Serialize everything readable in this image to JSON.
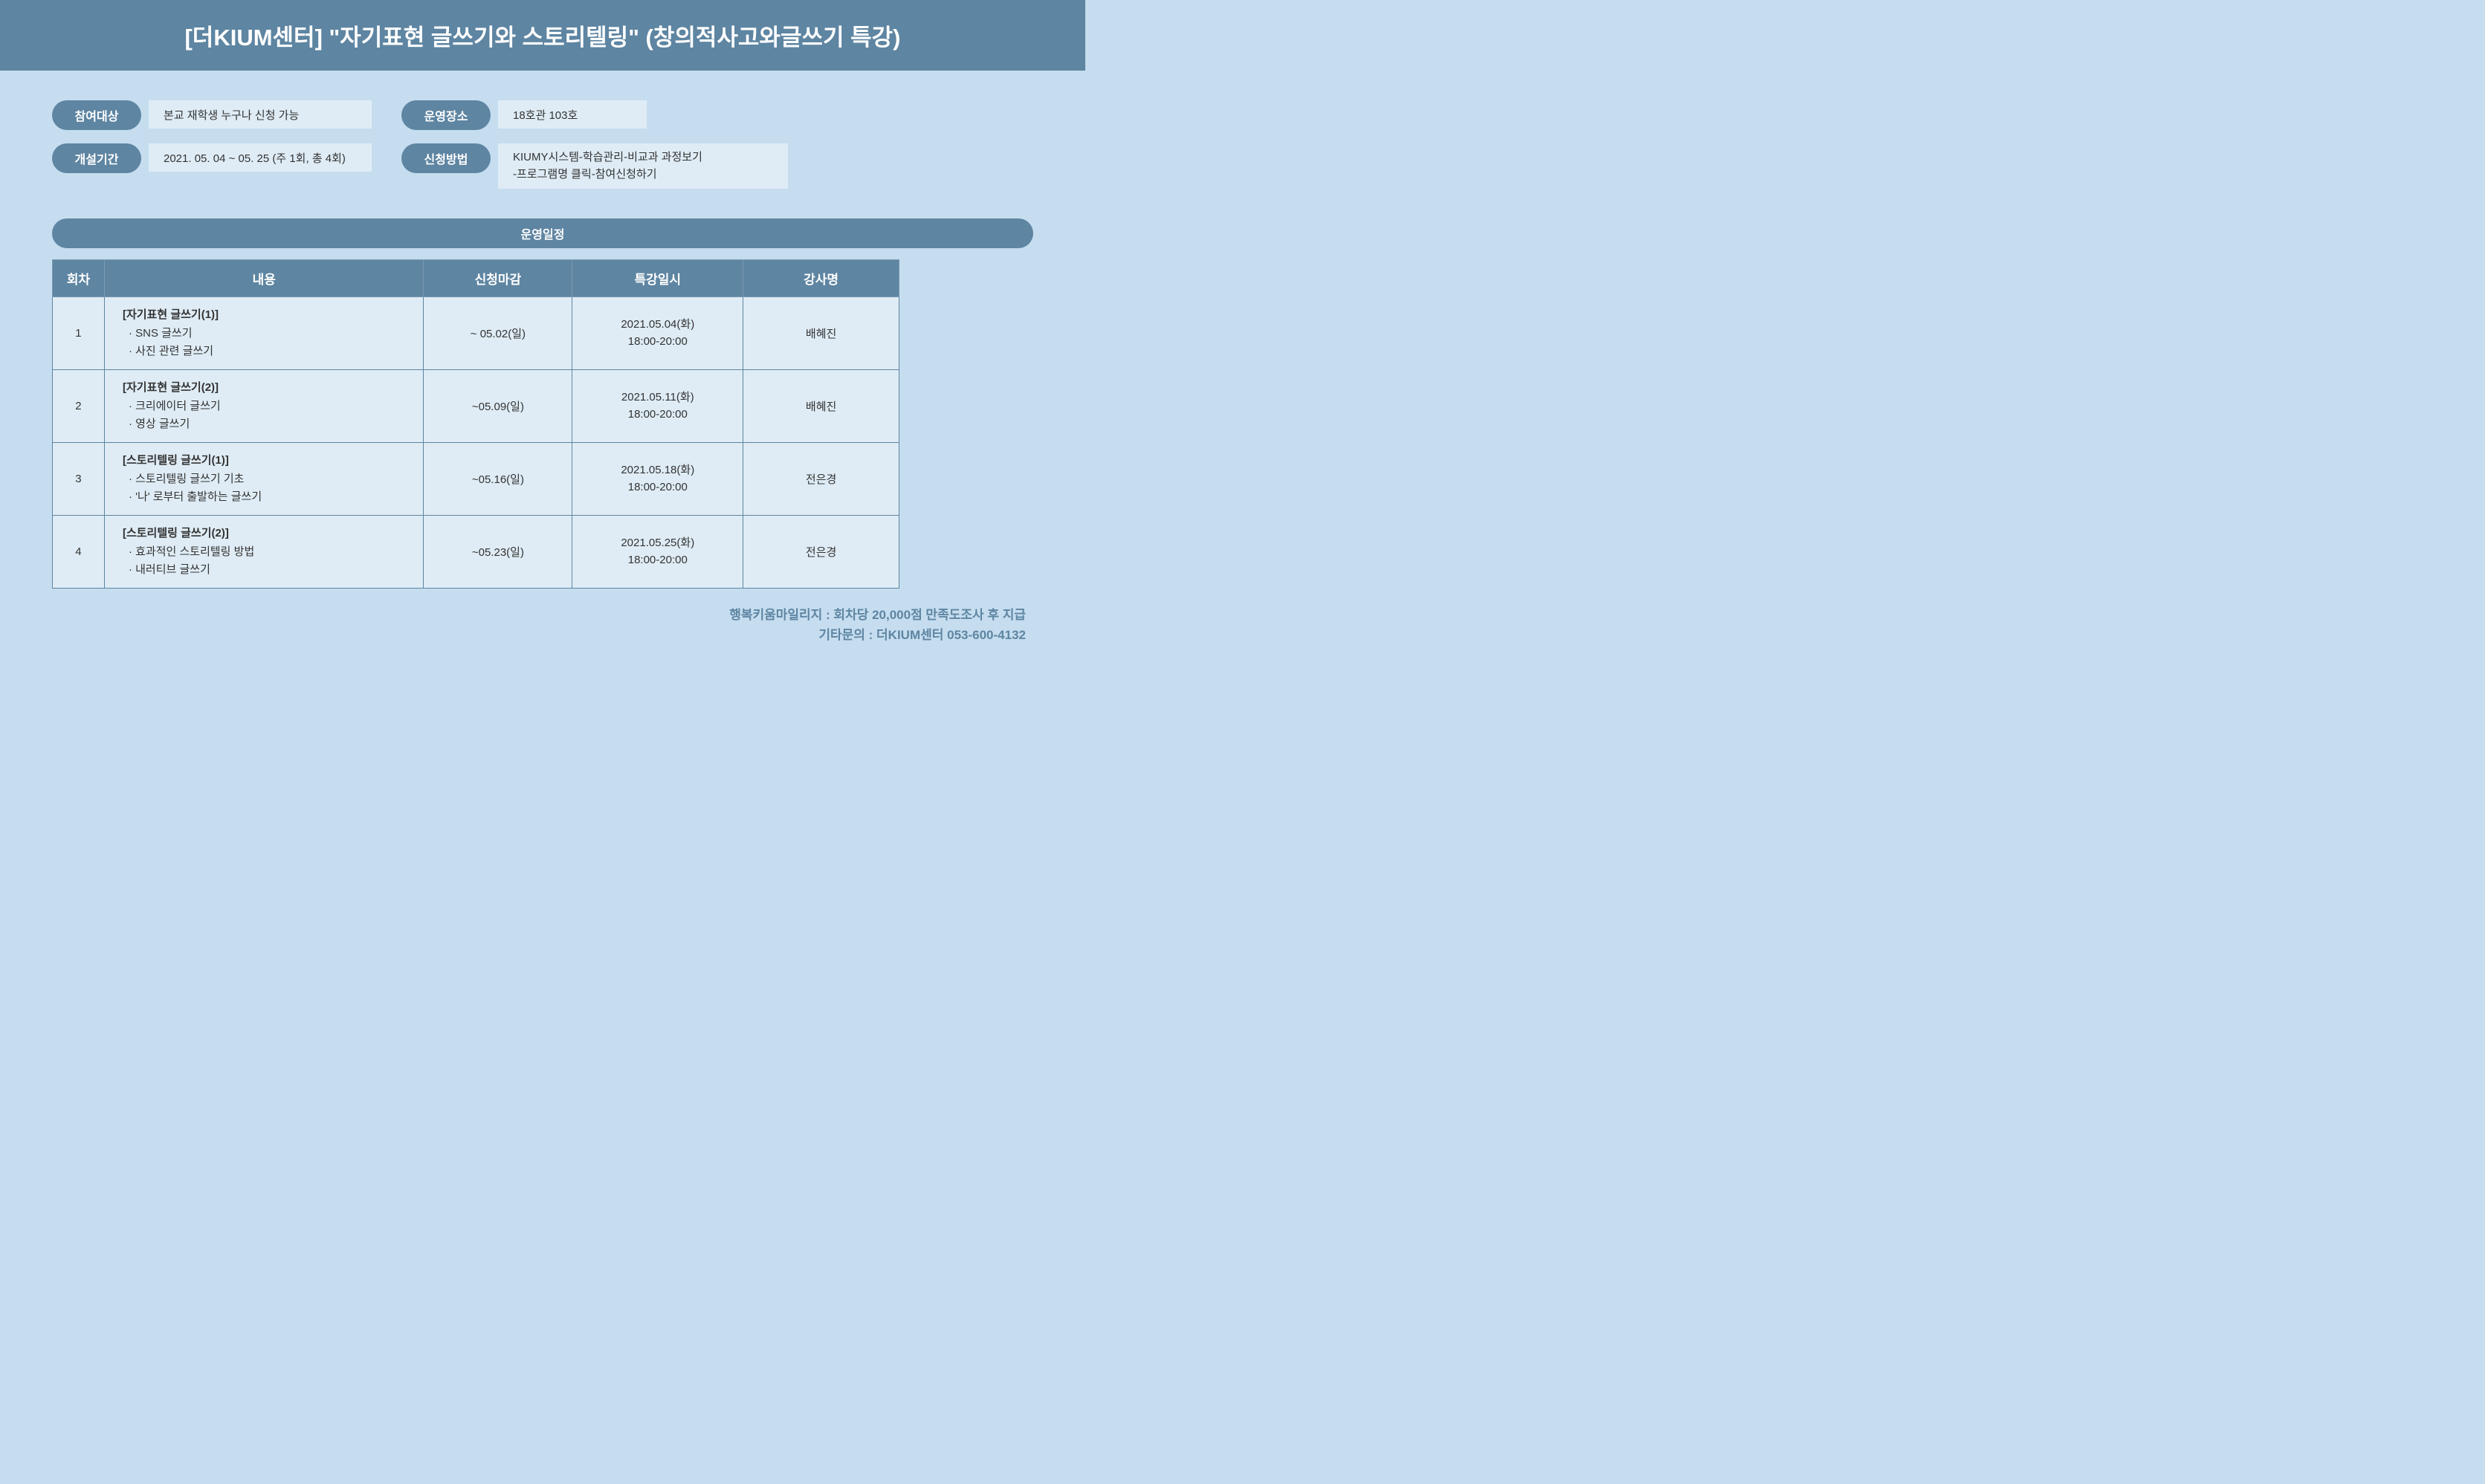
{
  "header": {
    "title": "[더KIUM센터] \"자기표현 글쓰기와 스토리텔링\" (창의적사고와글쓰기 특강)"
  },
  "info": {
    "target_label": "참여대상",
    "target_value": "본교 재학생 누구나 신청 가능",
    "location_label": "운영장소",
    "location_value": "18호관 103호",
    "period_label": "개설기간",
    "period_value": "2021. 05. 04 ~ 05. 25 (주 1회, 총 4회)",
    "apply_label": "신청방법",
    "apply_value_line1": "KIUMY시스템-학습관리-비교과 과정보기",
    "apply_value_line2": "-프로그램명 클릭-참여신청하기"
  },
  "schedule": {
    "label": "운영일정",
    "columns": {
      "num": "회차",
      "content": "내용",
      "deadline": "신청마감",
      "datetime": "특강일시",
      "instructor": "강사명"
    },
    "rows": [
      {
        "num": "1",
        "title": "[자기표현 글쓰기(1)]",
        "bullet1": "· SNS 글쓰기",
        "bullet2": "· 사진 관련 글쓰기",
        "deadline": "~ 05.02(일)",
        "date": "2021.05.04(화)",
        "time": "18:00-20:00",
        "instructor": "배혜진"
      },
      {
        "num": "2",
        "title": "[자기표현 글쓰기(2)]",
        "bullet1": "· 크리에이터 글쓰기",
        "bullet2": "· 영상 글쓰기",
        "deadline": "~05.09(일)",
        "date": "2021.05.11(화)",
        "time": "18:00-20:00",
        "instructor": "배혜진"
      },
      {
        "num": "3",
        "title": "[스토리텔링 글쓰기(1)]",
        "bullet1": "· 스토리텔링 글쓰기 기초",
        "bullet2": "· '나' 로부터 출발하는 글쓰기",
        "deadline": "~05.16(일)",
        "date": "2021.05.18(화)",
        "time": "18:00-20:00",
        "instructor": "전은경"
      },
      {
        "num": "4",
        "title": "[스토리텔링 글쓰기(2)]",
        "bullet1": "· 효과적인 스토리텔링 방법",
        "bullet2": "· 내러티브 글쓰기",
        "deadline": "~05.23(일)",
        "date": "2021.05.25(화)",
        "time": "18:00-20:00",
        "instructor": "전은경"
      }
    ]
  },
  "footer": {
    "line1": "행복키움마일리지 : 회차당 20,000점 만족도조사 후 지급",
    "line2": "기타문의 : 더KIUM센터 053-600-4132"
  },
  "colors": {
    "background": "#c5ddef",
    "banner_bg": "#5e85a2",
    "banner_text": "#ffffff",
    "value_bg": "#dfecf5",
    "text": "#333333",
    "footer_text": "#5e85a2"
  }
}
